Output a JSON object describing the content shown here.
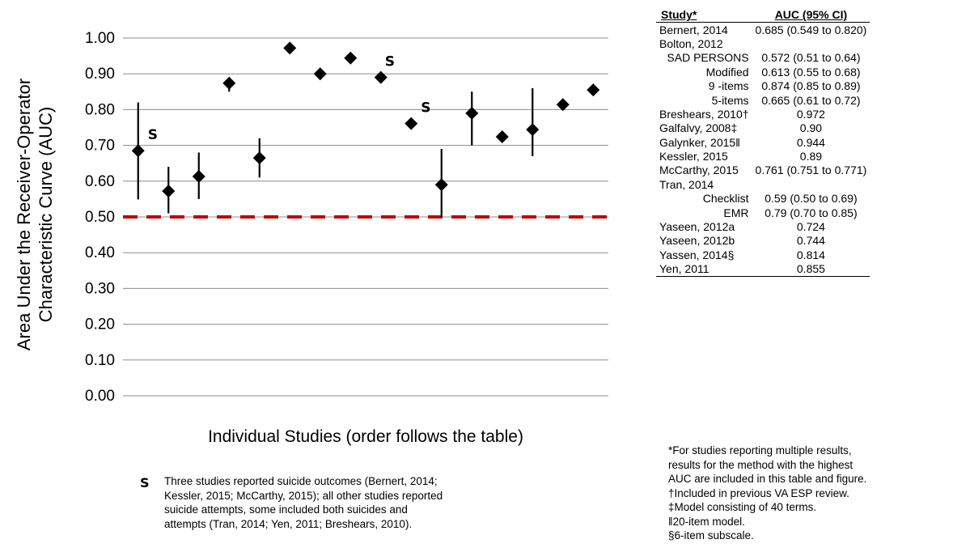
{
  "chart_data": {
    "type": "scatter",
    "ylabel_lines": [
      "Area Under the Receiver-Operator",
      "Characteristic Curve (AUC)"
    ],
    "xlabel": "Individual Studies (order follows the table)",
    "ylim": [
      0,
      1
    ],
    "yticks": [
      "0.00",
      "0.10",
      "0.20",
      "0.30",
      "0.40",
      "0.50",
      "0.60",
      "0.70",
      "0.80",
      "0.90",
      "1.00"
    ],
    "grid": true,
    "reference_line": 0.5,
    "reference_color": "#c00000",
    "marker_color": "#000000",
    "points": [
      {
        "study": "Bernert, 2014",
        "auc": 0.685,
        "lo": 0.549,
        "hi": 0.82,
        "suicide": true
      },
      {
        "study": "SAD PERSONS",
        "auc": 0.572,
        "lo": 0.51,
        "hi": 0.64,
        "suicide": false
      },
      {
        "study": "Modified",
        "auc": 0.613,
        "lo": 0.55,
        "hi": 0.68,
        "suicide": false
      },
      {
        "study": "9 -items",
        "auc": 0.874,
        "lo": 0.85,
        "hi": 0.89,
        "suicide": false
      },
      {
        "study": "5-items",
        "auc": 0.665,
        "lo": 0.61,
        "hi": 0.72,
        "suicide": false
      },
      {
        "study": "Breshears, 2010†",
        "auc": 0.972,
        "suicide": false
      },
      {
        "study": "Galfalvy, 2008‡",
        "auc": 0.9,
        "suicide": false
      },
      {
        "study": "Galynker, 2015‖",
        "auc": 0.944,
        "suicide": false
      },
      {
        "study": "Kessler, 2015",
        "auc": 0.89,
        "suicide": true
      },
      {
        "study": "McCarthy, 2015",
        "auc": 0.761,
        "lo": 0.751,
        "hi": 0.771,
        "suicide": true
      },
      {
        "study": "Checklist",
        "auc": 0.59,
        "lo": 0.5,
        "hi": 0.69,
        "suicide": false
      },
      {
        "study": "EMR",
        "auc": 0.79,
        "lo": 0.7,
        "hi": 0.85,
        "suicide": false
      },
      {
        "study": "Yaseen, 2012a",
        "auc": 0.724,
        "suicide": false
      },
      {
        "study": "Yaseen, 2012b",
        "auc": 0.744,
        "lo": 0.67,
        "hi": 0.86,
        "suicide": false
      },
      {
        "study": "Yassen, 2014§",
        "auc": 0.814,
        "suicide": false
      },
      {
        "study": "Yen, 2011",
        "auc": 0.855,
        "suicide": false
      }
    ],
    "marker_label": "S"
  },
  "legend_note": {
    "symbol": "S",
    "lines": [
      "Three studies reported suicide outcomes (Bernert, 2014;",
      "Kessler, 2015; McCarthy, 2015); all other studies reported",
      "suicide attempts, some included both suicides and",
      "attempts (Tran,  2014; Yen, 2011; Breshears, 2010)."
    ]
  },
  "table": {
    "headers": [
      "Study*",
      "AUC  (95%  CI)"
    ],
    "rows": [
      {
        "study": "Bernert, 2014",
        "auc": "0.685 (0.549 to 0.820)",
        "sub": false
      },
      {
        "study": "Bolton, 2012",
        "auc": "",
        "sub": false
      },
      {
        "study": "SAD PERSONS",
        "auc": "0.572 (0.51 to 0.64)",
        "sub": true
      },
      {
        "study": "Modified",
        "auc": "0.613 (0.55 to 0.68)",
        "sub": true
      },
      {
        "study": "9 -items",
        "auc": "0.874 (0.85 to 0.89)",
        "sub": true
      },
      {
        "study": "5-items",
        "auc": "0.665 (0.61 to 0.72)",
        "sub": true
      },
      {
        "study": "Breshears, 2010†",
        "auc": "0.972",
        "sub": false
      },
      {
        "study": "Galfalvy,  2008‡",
        "auc": "0.90",
        "sub": false
      },
      {
        "study": "Galynker, 2015‖",
        "auc": "0.944",
        "sub": false
      },
      {
        "study": "Kessler, 2015",
        "auc": "0.89",
        "sub": false
      },
      {
        "study": "McCarthy, 2015",
        "auc": "0.761 (0.751 to 0.771)",
        "sub": false
      },
      {
        "study": "Tran,  2014",
        "auc": "",
        "sub": false
      },
      {
        "study": "Checklist",
        "auc": "0.59 (0.50 to 0.69)",
        "sub": true
      },
      {
        "study": "EMR",
        "auc": "0.79 (0.70 to 0.85)",
        "sub": true
      },
      {
        "study": "Yaseen, 2012a",
        "auc": "0.724",
        "sub": false
      },
      {
        "study": "Yaseen, 2012b",
        "auc": "0.744",
        "sub": false
      },
      {
        "study": "Yassen, 2014§",
        "auc": "0.814",
        "sub": false
      },
      {
        "study": "Yen, 2011",
        "auc": "0.855",
        "sub": false
      }
    ]
  },
  "footnotes": [
    "*For studies reporting multiple results,",
    "results for the method with the highest",
    "AUC are included in this table and figure.",
    "†Included in previous  VA ESP review.",
    "‡Model consisting of 40 terms.",
    "‖20-item model.",
    "§6-item subscale."
  ]
}
